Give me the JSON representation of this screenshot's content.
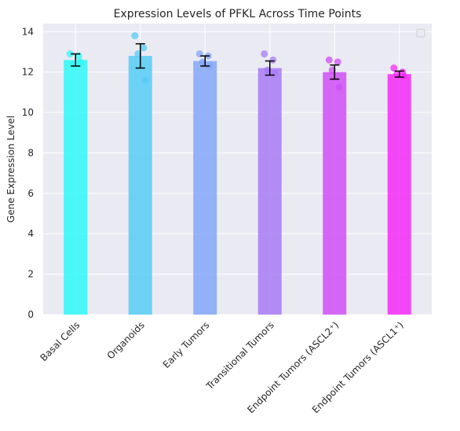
{
  "chart_data": {
    "type": "bar",
    "title": "Expression Levels of PFKL Across Time Points",
    "xlabel": "",
    "ylabel": "Gene Expression Level",
    "ylim": [
      0,
      14.4
    ],
    "yticks": [
      0,
      2,
      4,
      6,
      8,
      10,
      12,
      14
    ],
    "grid": true,
    "legend": "top-right (empty)",
    "categories": [
      "Basal Cells",
      "Organoids",
      "Early Tumors",
      "Transitional Tumors",
      "Endpoint Tumors (ASCL2⁺)",
      "Endpoint Tumors (ASCL1⁺)"
    ],
    "values": [
      12.6,
      12.8,
      12.55,
      12.2,
      12.0,
      11.9
    ],
    "errors": [
      0.3,
      0.6,
      0.25,
      0.35,
      0.35,
      0.15
    ],
    "colors": [
      "#2ef8f8",
      "#55ccf6",
      "#82a7f8",
      "#a77bf6",
      "#cf4ff6",
      "#f52af8"
    ],
    "points": [
      [
        12.9,
        12.8,
        12.4,
        12.5
      ],
      [
        13.8,
        13.2,
        12.9,
        11.6
      ],
      [
        12.9,
        12.8,
        12.5,
        12.3
      ],
      [
        12.9,
        12.6,
        12.1,
        11.95
      ],
      [
        12.6,
        12.5,
        12.1,
        11.25
      ],
      [
        12.2,
        12.0,
        11.9,
        11.8
      ]
    ]
  }
}
